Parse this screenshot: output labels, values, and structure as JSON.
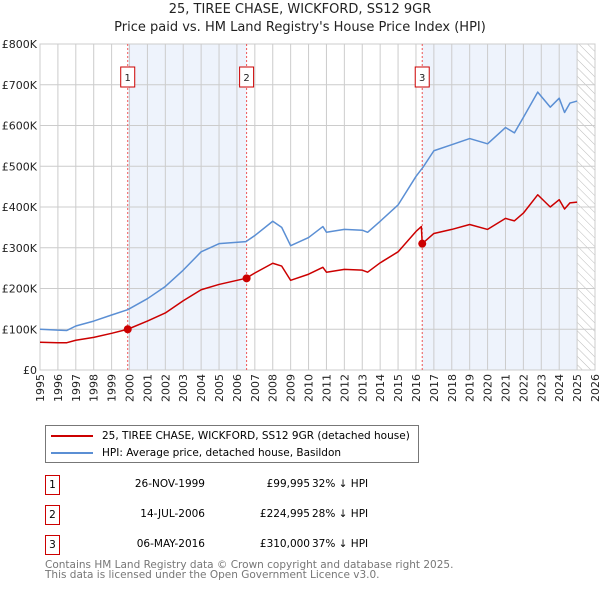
{
  "chart_data": {
    "type": "line",
    "title": "25, TIREE CHASE, WICKFORD, SS12 9GR",
    "subtitle": "Price paid vs. HM Land Registry's House Price Index (HPI)",
    "xlim": [
      1995,
      2026
    ],
    "ylim": [
      0,
      800000
    ],
    "x_ticks": [
      "1995",
      "1996",
      "1997",
      "1998",
      "1999",
      "2000",
      "2001",
      "2002",
      "2003",
      "2004",
      "2005",
      "2006",
      "2007",
      "2008",
      "2009",
      "2010",
      "2011",
      "2012",
      "2013",
      "2014",
      "2015",
      "2016",
      "2017",
      "2018",
      "2019",
      "2020",
      "2021",
      "2022",
      "2023",
      "2024",
      "2025",
      "2026"
    ],
    "y_ticks": [
      {
        "v": 0,
        "label": "£0"
      },
      {
        "v": 100000,
        "label": "£100K"
      },
      {
        "v": 200000,
        "label": "£200K"
      },
      {
        "v": 300000,
        "label": "£300K"
      },
      {
        "v": 400000,
        "label": "£400K"
      },
      {
        "v": 500000,
        "label": "£500K"
      },
      {
        "v": 600000,
        "label": "£600K"
      },
      {
        "v": 700000,
        "label": "£700K"
      },
      {
        "v": 800000,
        "label": "£800K"
      }
    ],
    "grid": true,
    "series": [
      {
        "name": "25, TIREE CHASE, WICKFORD, SS12 9GR (detached house)",
        "color": "#cc0000",
        "x": [
          1995,
          1996,
          1996.5,
          1997,
          1998,
          1999,
          1999.9,
          2001,
          2002,
          2003,
          2004,
          2005,
          2006.5,
          2007,
          2008,
          2008.5,
          2009,
          2010,
          2010.8,
          2011,
          2012,
          2013,
          2013.3,
          2014,
          2015,
          2016,
          2016.3,
          2016.35,
          2017,
          2018,
          2019,
          2020,
          2021,
          2021.5,
          2022,
          2022.8,
          2023.5,
          2024,
          2024.3,
          2024.6,
          2025
        ],
        "y": [
          68000,
          67000,
          67000,
          73000,
          80000,
          90000,
          99995,
          120000,
          140000,
          170000,
          197000,
          210000,
          224995,
          238000,
          262000,
          255000,
          220000,
          235000,
          252000,
          240000,
          247000,
          245000,
          240000,
          263000,
          290000,
          340000,
          352000,
          310000,
          335000,
          345000,
          357000,
          345000,
          372000,
          366000,
          385000,
          430000,
          400000,
          418000,
          395000,
          410000,
          412000
        ]
      },
      {
        "name": "HPI: Average price, detached house, Basildon",
        "color": "#5b8fd4",
        "x": [
          1995,
          1996,
          1996.5,
          1997,
          1998,
          1999,
          1999.9,
          2001,
          2002,
          2003,
          2004,
          2005,
          2006.5,
          2007,
          2008,
          2008.5,
          2009,
          2010,
          2010.8,
          2011,
          2012,
          2013,
          2013.3,
          2014,
          2015,
          2016,
          2016.4,
          2017,
          2018,
          2019,
          2020,
          2021,
          2021.5,
          2022,
          2022.8,
          2023.5,
          2024,
          2024.3,
          2024.6,
          2025
        ],
        "y": [
          100000,
          98000,
          97000,
          108000,
          120000,
          135000,
          148000,
          175000,
          205000,
          245000,
          290000,
          310000,
          315000,
          330000,
          365000,
          350000,
          305000,
          325000,
          352000,
          338000,
          345000,
          343000,
          338000,
          365000,
          405000,
          475000,
          498000,
          538000,
          553000,
          568000,
          555000,
          595000,
          582000,
          620000,
          682000,
          645000,
          667000,
          632000,
          655000,
          660000
        ]
      }
    ],
    "sales": [
      {
        "num": "1",
        "x": 1999.9,
        "date": "26-NOV-1999",
        "price": "£99,995",
        "value": 99995,
        "hpi": "32% ↓ HPI"
      },
      {
        "num": "2",
        "x": 2006.54,
        "date": "14-JUL-2006",
        "price": "£224,995",
        "value": 224995,
        "hpi": "28% ↓ HPI"
      },
      {
        "num": "3",
        "x": 2016.35,
        "date": "06-MAY-2016",
        "price": "£310,000",
        "value": 310000,
        "hpi": "37% ↓ HPI"
      }
    ],
    "shaded_ranges": [
      [
        1999.9,
        2006.54
      ],
      [
        2016.35,
        2025
      ]
    ],
    "hatched_from": 2025,
    "legend_placement": "below"
  },
  "footer": [
    "Contains HM Land Registry data © Crown copyright and database right 2025.",
    "This data is licensed under the Open Government Licence v3.0."
  ]
}
